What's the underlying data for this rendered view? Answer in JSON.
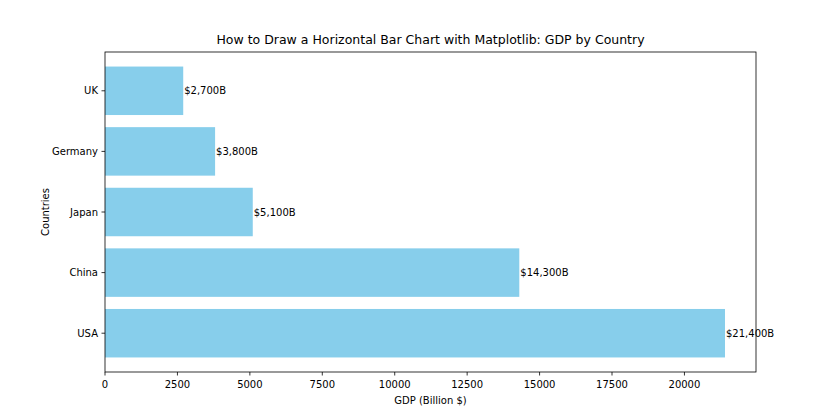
{
  "chart_data": {
    "type": "bar",
    "orientation": "horizontal",
    "title": "How to Draw a Horizontal Bar Chart with Matplotlib: GDP by Country",
    "x_label": "GDP (Billion $)",
    "y_label": "Countries",
    "categories": [
      "USA",
      "China",
      "Japan",
      "Germany",
      "UK"
    ],
    "values": [
      21400,
      14300,
      5100,
      3800,
      2700
    ],
    "value_labels": [
      "$21,400B",
      "$14,300B",
      "$5,100B",
      "$3,800B",
      "$2,700B"
    ],
    "data_labels": true,
    "color": "#87ceeb",
    "xlim": [
      0,
      22470
    ],
    "xticks": [
      0,
      2500,
      5000,
      7500,
      10000,
      12500,
      15000,
      17500,
      20000
    ],
    "grid": false
  }
}
